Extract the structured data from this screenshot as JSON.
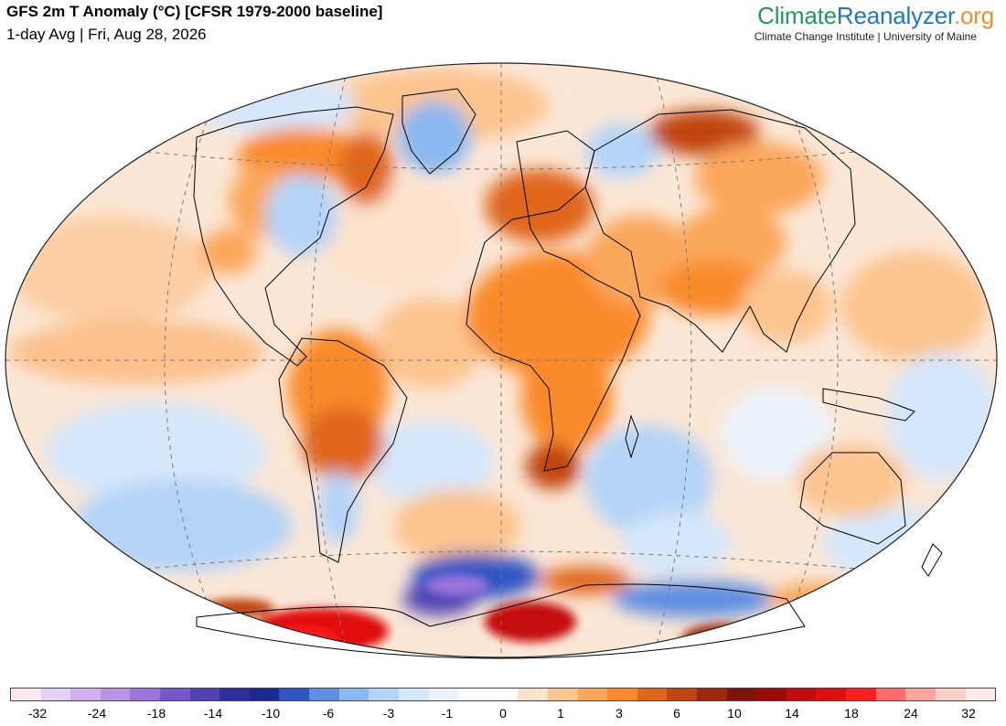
{
  "header": {
    "title": "GFS 2m T Anomaly (°C) [CFSR 1979-2000 baseline]",
    "subtitle": "1-day Avg | Fri, Aug 28, 2026"
  },
  "branding": {
    "logo_part1": "Climate",
    "logo_part2": "Reanalyzer",
    "logo_part3": ".org",
    "tagline": "Climate Change Institute | University of Maine"
  },
  "colorbar": {
    "colors": [
      "#fde9ef",
      "#e4d2f2",
      "#d0b3ee",
      "#b993e6",
      "#9a73db",
      "#7457c8",
      "#5042b3",
      "#2e2e9e",
      "#1b2a8e",
      "#2f55c4",
      "#5e8ee0",
      "#8bb8f0",
      "#b4d4f7",
      "#d4e7fb",
      "#eaf3fd",
      "#ffffff",
      "#ffffff",
      "#fde3cb",
      "#fcc48f",
      "#fba75c",
      "#f98a2a",
      "#e0661a",
      "#c04510",
      "#9c2a0a",
      "#7d1208",
      "#9c0a0a",
      "#c40a0a",
      "#e00f0f",
      "#ff1e1e",
      "#ff6a6a",
      "#ffa5a0",
      "#ffd0c8",
      "#ffe9ea"
    ],
    "tick_labels": [
      "-32",
      "-24",
      "-18",
      "-14",
      "-10",
      "-6",
      "-3",
      "-1",
      "0",
      "1",
      "3",
      "6",
      "10",
      "14",
      "18",
      "24",
      "32"
    ]
  },
  "map": {
    "projection_outline_color": "#222222",
    "graticule_color": "#7a7a7a"
  }
}
